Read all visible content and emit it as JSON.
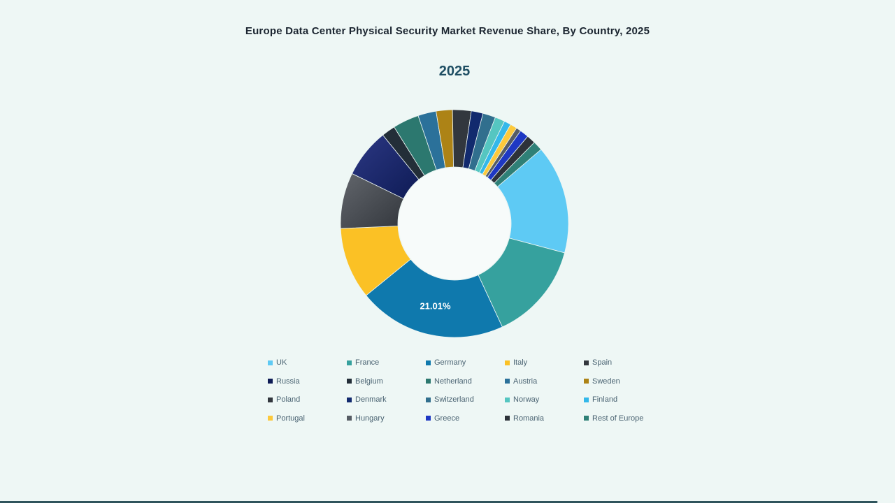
{
  "page": {
    "title": "Europe Data Center Physical Security Market Revenue Share, By Country, 2025",
    "chart_year_label": "2025",
    "background_color": "#eef7f5",
    "title_color": "#1b2530",
    "year_label_color": "#1e4e63",
    "legend_text_color": "#4a6372",
    "bottom_bar_color": "#2f545c"
  },
  "chart_data": {
    "type": "pie",
    "subtype": "donut",
    "title": "Europe Data Center Physical Security Market Revenue Share, By Country, 2025",
    "year_label": "2025",
    "unit": "%",
    "legend_position": "bottom",
    "start_angle_deg": 49.4,
    "inner_radius_ratio": 0.497,
    "visible_data_label": {
      "series": "Germany",
      "text": "21.01%"
    },
    "series": [
      {
        "name": "UK",
        "value": 15.42,
        "color": "#5ecaf4"
      },
      {
        "name": "France",
        "value": 13.97,
        "color": "#36a19e"
      },
      {
        "name": "Germany",
        "value": 21.01,
        "color": "#0f79ad",
        "label": "21.01%"
      },
      {
        "name": "Italy",
        "value": 10.19,
        "color": "#fbc125"
      },
      {
        "name": "Spain",
        "value": 7.92,
        "color": "#33373d",
        "color2": "#62666c"
      },
      {
        "name": "Russia",
        "value": 6.94,
        "color": "#0e1b55",
        "color2": "#2c3884"
      },
      {
        "name": "Belgium",
        "value": 1.94,
        "color": "#232e38"
      },
      {
        "name": "Netherland",
        "value": 3.72,
        "color": "#2c786f"
      },
      {
        "name": "Austria",
        "value": 2.58,
        "color": "#2b719a"
      },
      {
        "name": "Sweden",
        "value": 2.31,
        "color": "#ad8316"
      },
      {
        "name": "Poland",
        "value": 2.64,
        "color": "#32373e"
      },
      {
        "name": "Denmark",
        "value": 1.67,
        "color": "#122a6e"
      },
      {
        "name": "Switzerland",
        "value": 1.81,
        "color": "#316f8e"
      },
      {
        "name": "Norway",
        "value": 1.39,
        "color": "#55c6c1"
      },
      {
        "name": "Finland",
        "value": 0.97,
        "color": "#33b8ea"
      },
      {
        "name": "Portugal",
        "value": 0.97,
        "color": "#fcc93c"
      },
      {
        "name": "Hungary",
        "value": 0.69,
        "color": "#565c64"
      },
      {
        "name": "Greece",
        "value": 1.25,
        "color": "#1e38c3"
      },
      {
        "name": "Romania",
        "value": 1.25,
        "color": "#2d3239"
      },
      {
        "name": "Rest of Europe",
        "value": 1.36,
        "color": "#2f8077"
      }
    ]
  }
}
